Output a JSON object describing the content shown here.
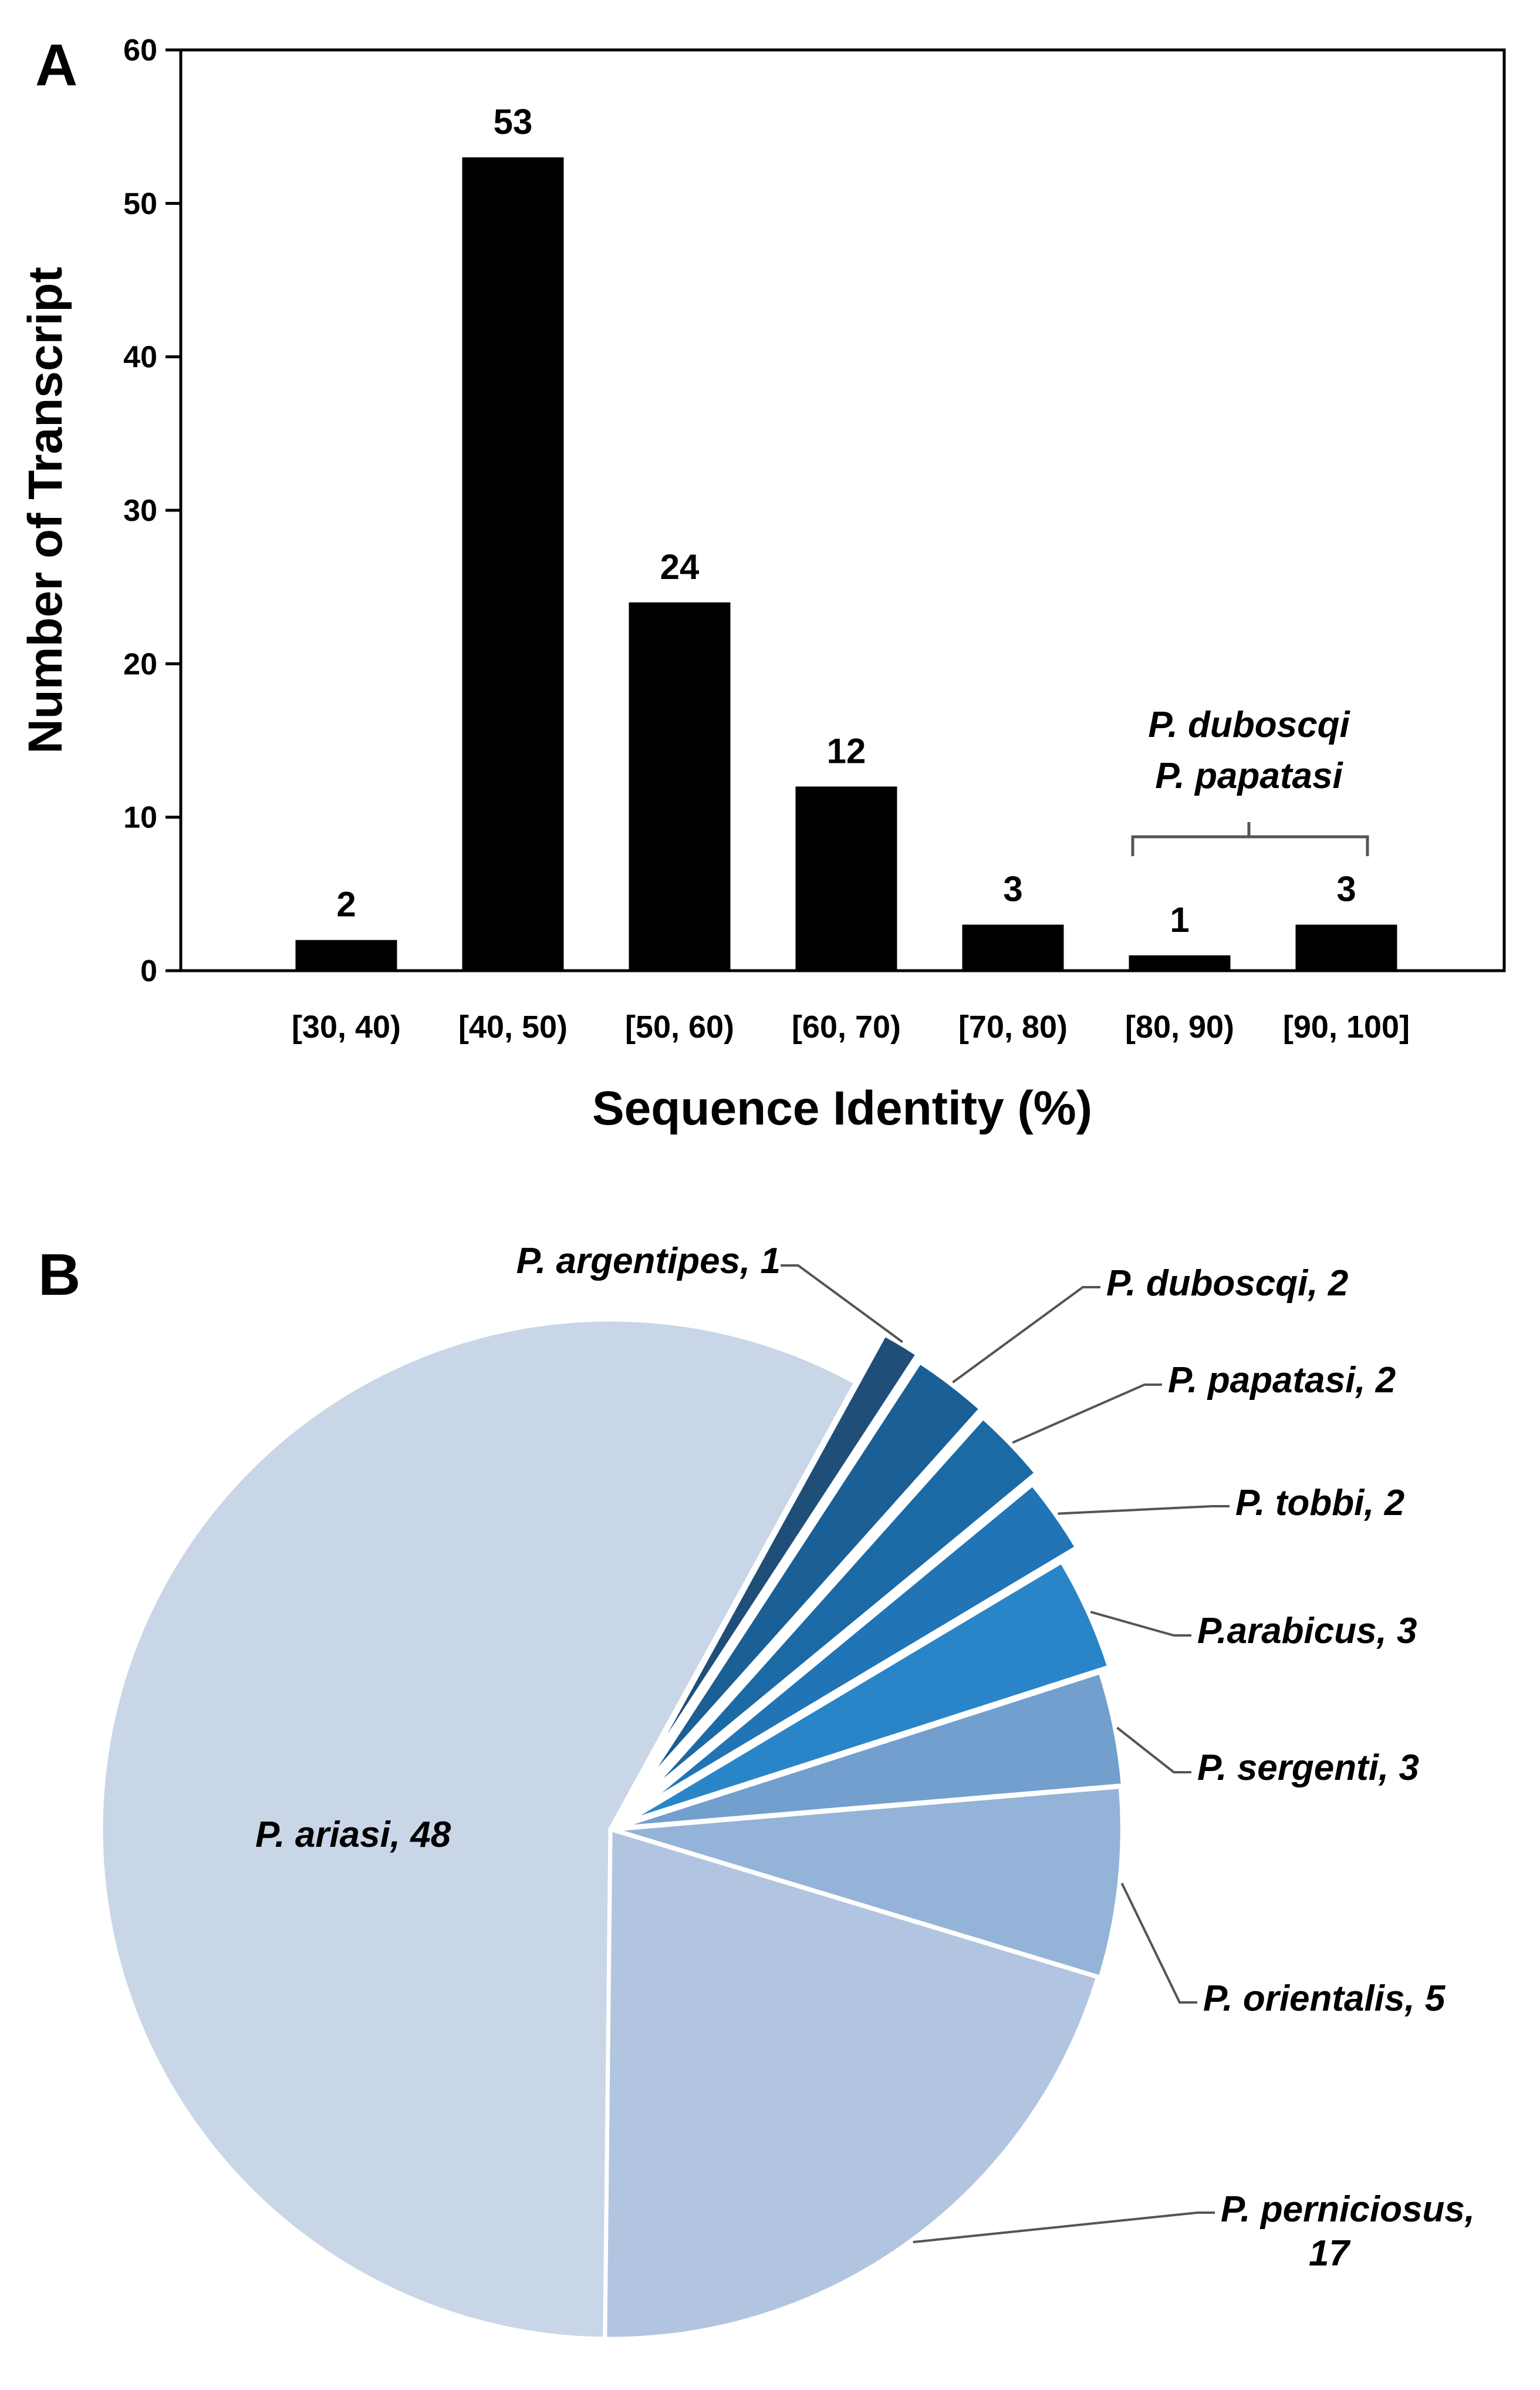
{
  "chart_data": [
    {
      "type": "bar",
      "panel_label": "A",
      "categories": [
        "[30, 40)",
        "[40, 50)",
        "[50, 60)",
        "[60, 70)",
        "[70, 80)",
        "[80, 90)",
        "[90, 100]"
      ],
      "values": [
        2,
        53,
        24,
        12,
        3,
        1,
        3
      ],
      "data_labels": [
        "2",
        "53",
        "24",
        "12",
        "3",
        "1",
        "3"
      ],
      "xlabel": "Sequence Identity (%)",
      "ylabel": "Number of Transcript",
      "ylim": [
        0,
        60
      ],
      "yticks": [
        "0",
        "10",
        "20",
        "30",
        "40",
        "50",
        "60"
      ],
      "bar_color": "#000000",
      "grid": false,
      "annotation": {
        "lines": [
          "P. duboscqi",
          "P. papatasi"
        ],
        "spans_categories": [
          "[80, 90)",
          "[90, 100]"
        ]
      }
    },
    {
      "type": "pie",
      "panel_label": "B",
      "slices": [
        {
          "name": "P. argentipes",
          "value": 1,
          "label": "P. argentipes, 1",
          "color": "#1f4e79"
        },
        {
          "name": "P. duboscqi",
          "value": 2,
          "label": "P. duboscqi, 2",
          "color": "#1a5f96"
        },
        {
          "name": "P. papatasi",
          "value": 2,
          "label": "P. papatasi, 2",
          "color": "#1c6aa5"
        },
        {
          "name": "P. tobbi",
          "value": 2,
          "label": "P. tobbi, 2",
          "color": "#2174b6"
        },
        {
          "name": "P.arabicus",
          "value": 3,
          "label": "P.arabicus, 3",
          "color": "#2a85c8"
        },
        {
          "name": "P. sergenti",
          "value": 3,
          "label": "P. sergenti, 3",
          "color": "#729fcd"
        },
        {
          "name": "P. orientalis",
          "value": 5,
          "label": "P. orientalis, 5",
          "color": "#94b3d8"
        },
        {
          "name": "P. perniciosus",
          "value": 17,
          "label_lines": [
            "P. perniciosus,",
            "17"
          ],
          "color": "#b2c5e0"
        },
        {
          "name": "P. ariasi",
          "value": 48,
          "label": "P. ariasi, 48",
          "color": "#c9d6e7"
        }
      ]
    }
  ]
}
